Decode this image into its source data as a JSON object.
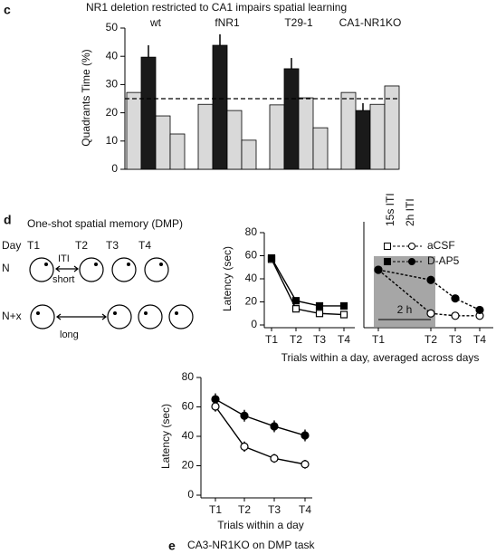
{
  "chart_data": [
    {
      "type": "bar",
      "panel": "c",
      "title": "NR1 deletion restricted to CA1 impairs spatial learning",
      "ylabel": "Quadrants Time (%)",
      "categories": [
        "wt",
        "fNR1",
        "T29-1",
        "CA1-NR1KO"
      ],
      "series": [
        {
          "color": "#d9d9d9",
          "values": [
            27.2,
            23,
            22.8,
            27.2
          ]
        },
        {
          "color": "#1a1a1a",
          "values": [
            39.7,
            43.9,
            35.6,
            20.8
          ],
          "errors": [
            4.2,
            3.9,
            3.8,
            2.6
          ]
        },
        {
          "color": "#d9d9d9",
          "values": [
            18.9,
            20.8,
            25.3,
            23
          ]
        },
        {
          "color": "#d9d9d9",
          "values": [
            12.5,
            10.3,
            14.7,
            29.5
          ]
        }
      ],
      "reference_line": 25,
      "ylim": [
        0,
        50
      ],
      "yticks": [
        0,
        10,
        20,
        30,
        40,
        50
      ]
    },
    {
      "type": "line",
      "xlabel": "Trials within a day, averaged across days",
      "ylabel": "Latency (sec)",
      "categories": [
        "T1",
        "T2",
        "T3",
        "T4"
      ],
      "series": [
        {
          "color": "#000000",
          "marker": "square",
          "marker_fill": "#ffffff",
          "values": [
            57,
            14,
            10,
            9
          ]
        },
        {
          "color": "#000000",
          "marker": "square",
          "marker_fill": "#000000",
          "values": [
            58,
            21,
            16.5,
            16.5
          ]
        }
      ],
      "ylim": [
        0,
        80
      ],
      "yticks": [
        0,
        20,
        40,
        60,
        80
      ]
    },
    {
      "type": "line",
      "categories": [
        "T1",
        "T2",
        "T3",
        "T4"
      ],
      "dashed": true,
      "annotations": [
        "15s ITI",
        "2h ITI",
        "2 h"
      ],
      "series": [
        {
          "name": "aCSF",
          "color": "#000000",
          "marker": "circle",
          "marker_fill": "#ffffff",
          "values": [
            47.8,
            10,
            8,
            8
          ]
        },
        {
          "name": "D-AP5",
          "color": "#000000",
          "marker": "circle",
          "marker_fill": "#000000",
          "values": [
            47.8,
            39,
            23,
            13
          ]
        }
      ],
      "ylim": [
        0,
        80
      ]
    },
    {
      "type": "line",
      "panel": "e",
      "title": "CA3-NR1KO on DMP task",
      "xlabel": "Trials within a day",
      "ylabel": "Latency (sec)",
      "categories": [
        "T1",
        "T2",
        "T3",
        "T4"
      ],
      "series": [
        {
          "color": "#000000",
          "marker": "circle",
          "marker_fill": "#000000",
          "values": [
            65.2,
            54,
            46.8,
            40.6
          ],
          "errors": [
            4,
            4,
            4,
            4
          ]
        },
        {
          "color": "#000000",
          "marker": "circle",
          "marker_fill": "#ffffff",
          "values": [
            60.3,
            33,
            25,
            21
          ],
          "errors": [
            3.5,
            3.5,
            3,
            3
          ]
        }
      ],
      "ylim": [
        0,
        80
      ],
      "yticks": [
        0,
        20,
        40,
        60,
        80
      ]
    }
  ],
  "diagram": {
    "panel": "d",
    "title": "One-shot spatial memory (DMP)",
    "row_header": "Day",
    "trials": [
      "T1",
      "T2",
      "T3",
      "T4"
    ],
    "rows": [
      {
        "label": "N",
        "interval": "ITI",
        "interval_note": "short"
      },
      {
        "label": "N+x",
        "interval": "long"
      }
    ]
  }
}
